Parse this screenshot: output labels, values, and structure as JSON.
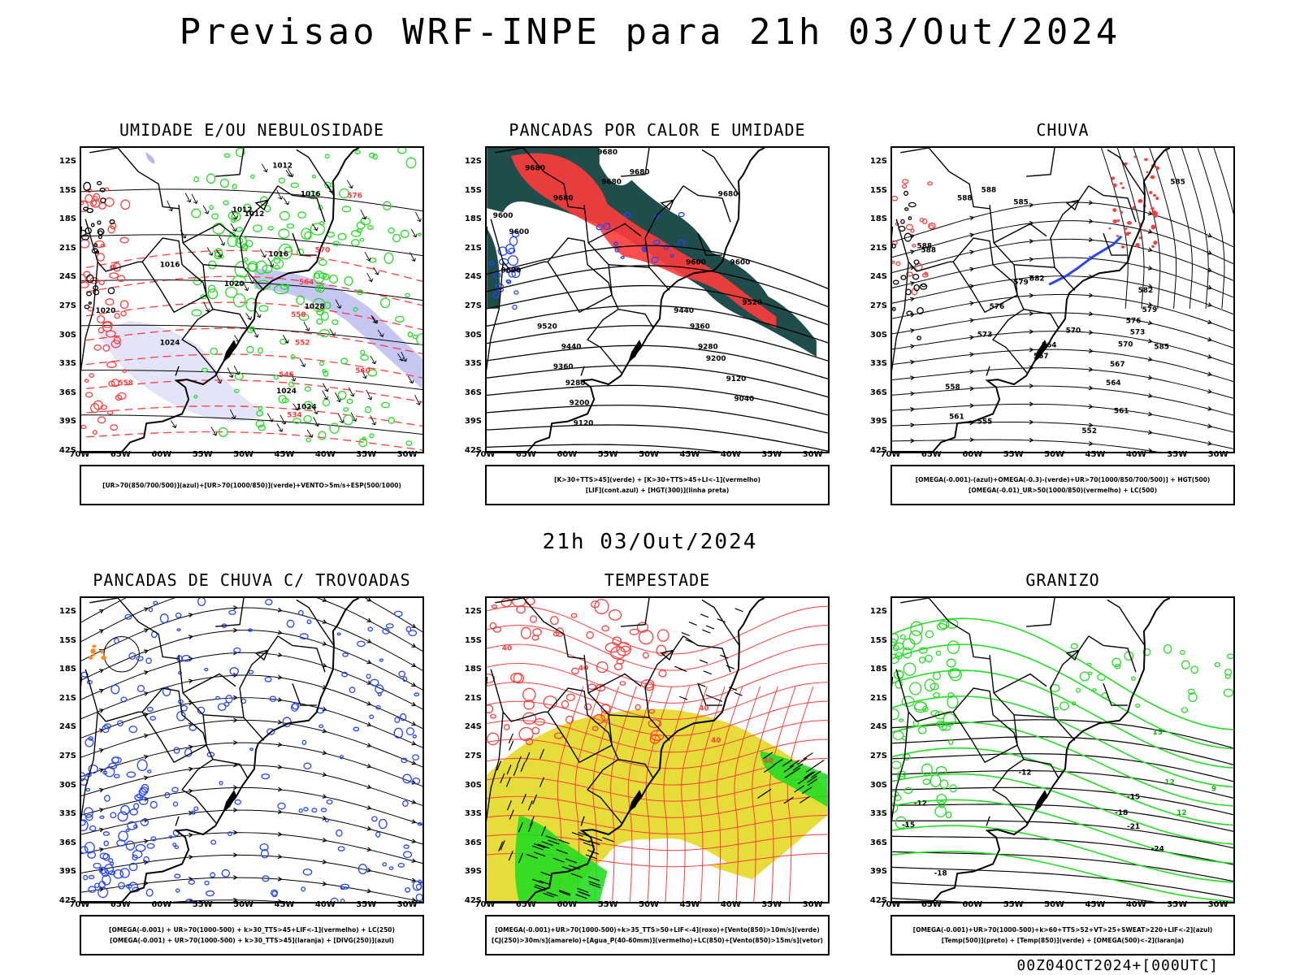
{
  "title": "Previsao WRF-INPE  para 21h 03/Out/2024",
  "mid_title": "21h 03/Out/2024",
  "footer": "00Z04OCT2024+[000UTC]",
  "lat_ticks": [
    "12S",
    "15S",
    "18S",
    "21S",
    "24S",
    "27S",
    "30S",
    "33S",
    "36S",
    "39S",
    "42S"
  ],
  "lon_ticks": [
    "70W",
    "65W",
    "60W",
    "55W",
    "50W",
    "45W",
    "40W",
    "35W",
    "30W"
  ],
  "colors": {
    "red": "#ff3b3b",
    "green": "#22dd22",
    "blue": "#2244ff",
    "lavender": "#b8b8f0",
    "teal": "#1e4d4b",
    "yellow": "#e6dc3a",
    "orange": "#ff8c1a"
  },
  "panels": [
    {
      "id": "umidade",
      "title": "UMIDADE E/OU NEBULOSIDADE",
      "legend": [
        "[UR>70(850/700/500)](azul)+[UR>70(1000/850)](verde)+VENTO>5m/s+ESP(500/1000)"
      ],
      "contour_labels": [
        {
          "text": "1012"
        },
        {
          "text": "1016"
        },
        {
          "text": "1012"
        },
        {
          "text": "1012"
        },
        {
          "text": "1016"
        },
        {
          "text": "1016"
        },
        {
          "text": "1020"
        },
        {
          "text": "1024"
        },
        {
          "text": "1024"
        },
        {
          "text": "1024"
        },
        {
          "text": "1028"
        },
        {
          "text": "1020"
        }
      ],
      "red_labels": [
        {
          "text": "576"
        },
        {
          "text": "570"
        },
        {
          "text": "564"
        },
        {
          "text": "558"
        },
        {
          "text": "552"
        },
        {
          "text": "546"
        },
        {
          "text": "540"
        },
        {
          "text": "534"
        },
        {
          "text": "558"
        }
      ]
    },
    {
      "id": "pancadas-calor",
      "title": "PANCADAS POR CALOR E UMIDADE",
      "legend": [
        "[K>30+TTS>45](verde) + [K>30+TTS>45+LI<-1](vermelho)",
        "[LIF](cont.azul) + [HGT(300)](linha preta)"
      ],
      "contour_labels": [
        {
          "text": "9680"
        },
        {
          "text": "9680"
        },
        {
          "text": "9680"
        },
        {
          "text": "9680"
        },
        {
          "text": "9680"
        },
        {
          "text": "9600"
        },
        {
          "text": "9600"
        },
        {
          "text": "9600"
        },
        {
          "text": "9600"
        },
        {
          "text": "9520"
        },
        {
          "text": "9520"
        },
        {
          "text": "9440"
        },
        {
          "text": "9440"
        },
        {
          "text": "9360"
        },
        {
          "text": "9360"
        },
        {
          "text": "9280"
        },
        {
          "text": "9280"
        },
        {
          "text": "9200"
        },
        {
          "text": "9200"
        },
        {
          "text": "9120"
        },
        {
          "text": "9120"
        },
        {
          "text": "9040"
        },
        {
          "text": "9600"
        },
        {
          "text": "9680"
        }
      ]
    },
    {
      "id": "chuva",
      "title": "CHUVA",
      "legend": [
        "[OMEGA(-0.001)-(azul)+OMEGA(-0.3)-(verde)+UR>70(1000/850/700/500)] + HGT(500)",
        "[OMEGA(-0.01)_UR>50(1000/850)(vermelho) + LC(500)"
      ],
      "contour_labels": [
        {
          "text": "585"
        },
        {
          "text": "588"
        },
        {
          "text": "588"
        },
        {
          "text": "588"
        },
        {
          "text": "585"
        },
        {
          "text": "582"
        },
        {
          "text": "579"
        },
        {
          "text": "576"
        },
        {
          "text": "573"
        },
        {
          "text": "570"
        },
        {
          "text": "567"
        },
        {
          "text": "564"
        },
        {
          "text": "561"
        },
        {
          "text": "558"
        },
        {
          "text": "555"
        },
        {
          "text": "552"
        },
        {
          "text": "585"
        },
        {
          "text": "582"
        },
        {
          "text": "579"
        },
        {
          "text": "576"
        },
        {
          "text": "573"
        },
        {
          "text": "570"
        },
        {
          "text": "567"
        },
        {
          "text": "564"
        },
        {
          "text": "561"
        },
        {
          "text": "588"
        }
      ]
    },
    {
      "id": "pancadas-trovoadas",
      "title": "PANCADAS DE CHUVA C/ TROVOADAS",
      "legend": [
        "[OMEGA(-0.001) + UR>70(1000-500) + k>30_TTS>45+LIF<-1](vermelho) + LC(250)",
        "[OMEGA(-0.001) + UR>70(1000-500) + k>30_TTS>45](laranja) + [DIVG(250)](azul)"
      ]
    },
    {
      "id": "tempestade",
      "title": "TEMPESTADE",
      "legend": [
        "[OMEGA(-0.001)+UR>70(1000-500)+k>35_TTS>50+LIF<-4](roxo)+[Vento(850)>10m/s](verde)",
        "[CJ(250)>30m/s](amarelo)+[Agua_P(40-60mm)](vermelho)+LC(850)+[Vento(850)>15m/s](vetor)"
      ],
      "red_labels": [
        {
          "text": "40"
        },
        {
          "text": "40"
        },
        {
          "text": "40"
        },
        {
          "text": "40"
        },
        {
          "text": "40"
        }
      ]
    },
    {
      "id": "granizo",
      "title": "GRANIZO",
      "legend": [
        "[OMEGA(-0.001)+UR>70(1000-500)+k>60+TTS>52+VT>25+SWEAT>220+LIF<-2](azul)",
        "[Temp(500)](preto) + [Temp(850)](verde) + [OMEGA(500)<-2](laranja)"
      ],
      "contour_labels": [
        {
          "text": "-12"
        },
        {
          "text": "-15"
        },
        {
          "text": "-18"
        },
        {
          "text": "-21"
        },
        {
          "text": "-24"
        },
        {
          "text": "-12"
        },
        {
          "text": "-15"
        },
        {
          "text": "-18"
        }
      ],
      "green_labels": [
        {
          "text": "15"
        },
        {
          "text": "12"
        },
        {
          "text": "9"
        },
        {
          "text": "12"
        }
      ]
    }
  ]
}
